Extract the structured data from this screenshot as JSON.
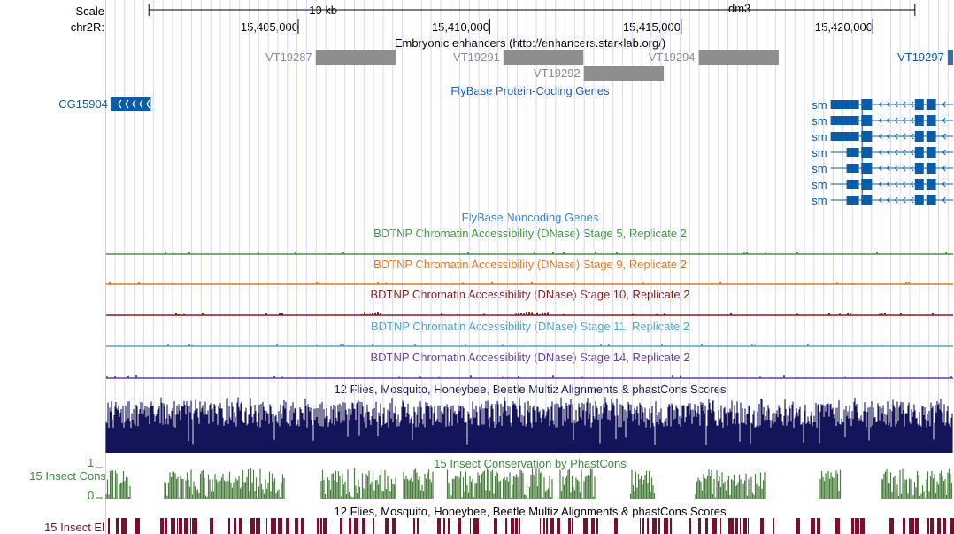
{
  "ruler": {
    "scale_label": "Scale",
    "chrom_label": "chr2R:",
    "scale_bar_label": "10 kb",
    "assembly": "dm3",
    "positions": [
      "15,405,000",
      "15,410,000",
      "15,415,000",
      "15,420,000"
    ]
  },
  "tracks": {
    "enhancers": {
      "title": "Embryonic enhancers (http://enhancers.starklab.org/)",
      "items": [
        {
          "name": "VT19287",
          "start": 15405456,
          "end": 15407544
        },
        {
          "name": "VT19291",
          "start": 15410356,
          "end": 15412444
        },
        {
          "name": "VT19292",
          "start": 15412456,
          "end": 15414544
        },
        {
          "name": "VT19294",
          "start": 15415456,
          "end": 15417544
        },
        {
          "name": "VT19297",
          "start": 15421956,
          "end": 15422600
        }
      ]
    },
    "protein_coding": {
      "title": "FlyBase Protein-Coding Genes",
      "genes": [
        {
          "name": "CG15904",
          "start": 15400100,
          "end": 15401150,
          "strand": "-"
        },
        {
          "name": "sm",
          "start": 15418900,
          "end": 15422600,
          "strand": "-"
        },
        {
          "name": "sm",
          "start": 15418900,
          "end": 15422600,
          "strand": "-"
        },
        {
          "name": "sm",
          "start": 15418900,
          "end": 15422600,
          "strand": "-"
        },
        {
          "name": "sm",
          "start": 15418900,
          "end": 15422600,
          "strand": "-"
        },
        {
          "name": "sm",
          "start": 15418900,
          "end": 15422600,
          "strand": "-"
        },
        {
          "name": "sm",
          "start": 15418900,
          "end": 15422600,
          "strand": "-"
        },
        {
          "name": "sm",
          "start": 15418900,
          "end": 15422600,
          "strand": "-"
        }
      ]
    },
    "noncoding": {
      "title": "FlyBase Noncoding Genes"
    },
    "dnase": [
      {
        "title": "BDTNP Chromatin Accessibility (DNase) Stage 5, Replicate 2",
        "color": "#3c9a3c"
      },
      {
        "title": "BDTNP Chromatin Accessibility (DNase) Stage 9, Replicate 2",
        "color": "#e07a20"
      },
      {
        "title": "BDTNP Chromatin Accessibility (DNase) Stage 10, Replicate 2",
        "color": "#8b1a1a"
      },
      {
        "title": "BDTNP Chromatin Accessibility (DNase) Stage 11, Replicate 2",
        "color": "#4aa8c8"
      },
      {
        "title": "BDTNP Chromatin Accessibility (DNase) Stage 14, Replicate 2",
        "color": "#6a3aa0"
      }
    ],
    "multiz": {
      "title": "12 Flies, Mosquito, Honeybee, Beetle Multiz Alignments & phastCons Scores"
    },
    "insect_cons": {
      "title": "15 Insect Conservation by PhastCons",
      "side_label": "15 Insect Cons",
      "scale_max": "1",
      "scale_min": "0"
    },
    "insect_el": {
      "title": "12 Flies, Mosquito, Honeybee, Beetle Multiz Alignments & phastCons Scores",
      "side_label": "15 Insect El"
    }
  },
  "colors": {
    "gene_blue": "#0a5ca8",
    "enhancer_gray": "#8e8e8e",
    "enhancer_blue": "#3a6ea5",
    "multiz_navy": "#14145a",
    "cons_green": "#4a7f3f",
    "el_maroon": "#7a1030",
    "gridline": "#d8d8f5",
    "left_border": "#f4c0c0"
  }
}
